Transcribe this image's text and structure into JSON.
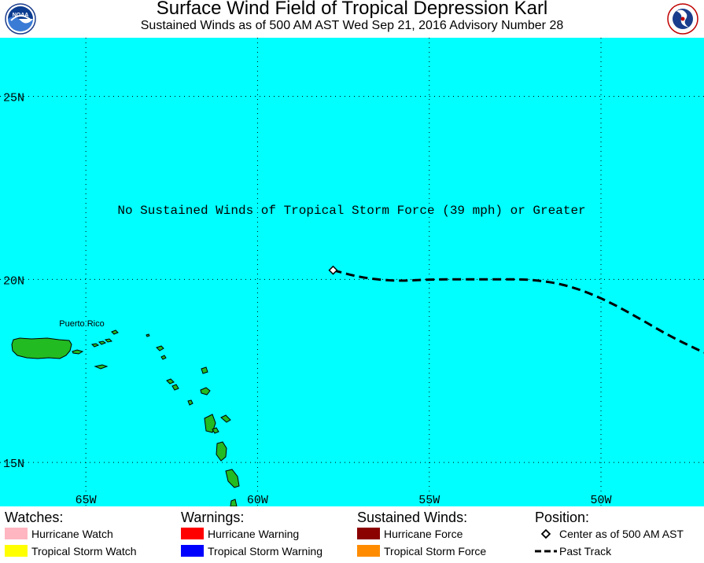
{
  "header": {
    "title": "Surface Wind Field of Tropical Depression Karl",
    "subtitle": "Sustained Winds as of 500 AM AST Wed Sep 21, 2016     Advisory Number 28",
    "logo_left_icon": "noaa-logo-icon",
    "logo_right_icon": "nws-logo-icon"
  },
  "map": {
    "ocean_color": "#00ffff",
    "land_color": "#22bb22",
    "lon_range": [
      -67.5,
      -47.0
    ],
    "lat_range": [
      13.8,
      26.6
    ],
    "lat_labels": [
      {
        "lat": 25,
        "text": "25N"
      },
      {
        "lat": 20,
        "text": "20N"
      },
      {
        "lat": 15,
        "text": "15N"
      }
    ],
    "lon_labels": [
      {
        "lon": -65,
        "text": "65W"
      },
      {
        "lon": -60,
        "text": "60W"
      },
      {
        "lon": -55,
        "text": "55W"
      },
      {
        "lon": -50,
        "text": "50W"
      }
    ],
    "place_label": "Puerto Rico",
    "notice": "No Sustained Winds of Tropical Storm Force (39 mph) or Greater",
    "center": {
      "lon": -57.8,
      "lat": 20.25
    },
    "past_track": [
      [
        -57.8,
        20.25
      ],
      [
        -57.0,
        20.05
      ],
      [
        -56.0,
        19.95
      ],
      [
        -55.0,
        20.0
      ],
      [
        -54.0,
        20.0
      ],
      [
        -53.0,
        20.0
      ],
      [
        -52.0,
        20.0
      ],
      [
        -51.0,
        19.85
      ],
      [
        -50.0,
        19.5
      ],
      [
        -49.0,
        19.0
      ],
      [
        -48.0,
        18.45
      ],
      [
        -47.0,
        18.0
      ]
    ]
  },
  "legend": {
    "watches": {
      "heading": "Watches:",
      "items": [
        {
          "label": "Hurricane Watch",
          "color": "#ffb6c1"
        },
        {
          "label": "Tropical Storm Watch",
          "color": "#ffff00"
        }
      ]
    },
    "warnings": {
      "heading": "Warnings:",
      "items": [
        {
          "label": "Hurricane Warning",
          "color": "#ff0000"
        },
        {
          "label": "Tropical Storm Warning",
          "color": "#0000ff"
        }
      ]
    },
    "winds": {
      "heading": "Sustained Winds:",
      "items": [
        {
          "label": "Hurricane Force",
          "color": "#8b0000"
        },
        {
          "label": "Tropical Storm Force",
          "color": "#ff8c00"
        }
      ]
    },
    "position": {
      "heading": "Position:",
      "center_label": "Center as of 500 AM AST",
      "track_label": "Past Track"
    }
  }
}
